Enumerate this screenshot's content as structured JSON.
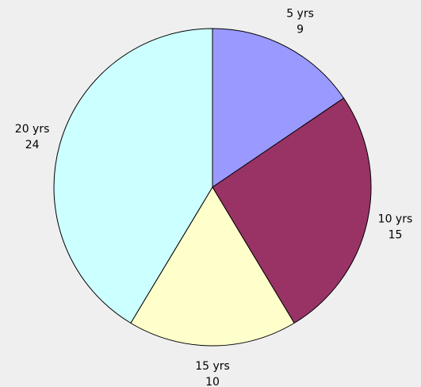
{
  "chart_data": {
    "type": "pie",
    "categories": [
      "5 yrs",
      "10 yrs",
      "15 yrs",
      "20 yrs"
    ],
    "values": [
      9,
      15,
      10,
      24
    ],
    "colors": [
      "#9999ff",
      "#993366",
      "#ffffcc",
      "#ccffff"
    ]
  }
}
